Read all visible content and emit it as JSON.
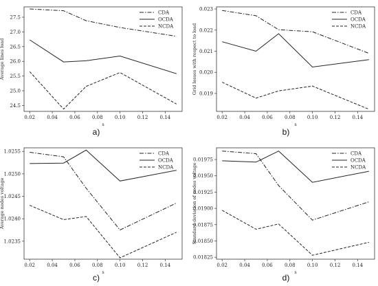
{
  "chart_data": [
    {
      "type": "line",
      "panel_label": "a)",
      "xlabel": "s",
      "ylabel": "Average lines load",
      "x": [
        0.02,
        0.05,
        0.07,
        0.1,
        0.15
      ],
      "xticks": [
        "0.02",
        "0.04",
        "0.06",
        "0.08",
        "0.10",
        "0.12",
        "0.14"
      ],
      "yticks": [
        "24.5",
        "25.0",
        "25.5",
        "26.0",
        "26.5",
        "27.0",
        "27.5"
      ],
      "xlim": [
        0.015,
        0.155
      ],
      "ylim": [
        24.3,
        27.85
      ],
      "legend_position": "top-right",
      "series": [
        {
          "name": "CDA",
          "dash": "dashdot",
          "values": [
            27.78,
            27.72,
            27.38,
            27.15,
            26.85
          ]
        },
        {
          "name": "OCDA",
          "dash": "solid",
          "values": [
            26.73,
            25.98,
            26.02,
            26.18,
            25.58
          ]
        },
        {
          "name": "NCDA",
          "dash": "dashed",
          "values": [
            25.65,
            24.38,
            25.15,
            25.62,
            24.55
          ]
        }
      ]
    },
    {
      "type": "line",
      "panel_label": "b)",
      "xlabel": "s",
      "ylabel": "Grid losses with respect to load",
      "x": [
        0.02,
        0.05,
        0.07,
        0.1,
        0.15
      ],
      "xticks": [
        "0.02",
        "0.04",
        "0.06",
        "0.08",
        "0.10",
        "0.12",
        "0.14"
      ],
      "yticks": [
        "0.019",
        "0.020",
        "0.021",
        "0.022",
        "0.023"
      ],
      "xlim": [
        0.015,
        0.155
      ],
      "ylim": [
        0.01815,
        0.0231
      ],
      "legend_position": "top-right",
      "series": [
        {
          "name": "CDA",
          "dash": "dashdot",
          "values": [
            0.02293,
            0.02268,
            0.02202,
            0.02192,
            0.0209
          ]
        },
        {
          "name": "OCDA",
          "dash": "solid",
          "values": [
            0.02145,
            0.021,
            0.02183,
            0.02025,
            0.0206
          ]
        },
        {
          "name": "NCDA",
          "dash": "dashed",
          "values": [
            0.01953,
            0.01878,
            0.01912,
            0.01935,
            0.01825
          ]
        }
      ]
    },
    {
      "type": "line",
      "panel_label": "c)",
      "xlabel": "s",
      "ylabel": "Average nodes voltage",
      "x": [
        0.02,
        0.05,
        0.07,
        0.1,
        0.15
      ],
      "xticks": [
        "0.02",
        "0.04",
        "0.06",
        "0.08",
        "0.10",
        "0.12",
        "0.14"
      ],
      "yticks": [
        "1.0235",
        "1.0240",
        "1.0245",
        "1.0250",
        "1.0255"
      ],
      "xlim": [
        0.015,
        0.155
      ],
      "ylim": [
        1.0231,
        1.02558
      ],
      "legend_position": "top-right",
      "series": [
        {
          "name": "CDA",
          "dash": "dashdot",
          "values": [
            1.02548,
            1.02538,
            1.02468,
            1.02375,
            1.02435
          ]
        },
        {
          "name": "OCDA",
          "dash": "solid",
          "values": [
            1.02523,
            1.02524,
            1.02553,
            1.02484,
            1.02508
          ]
        },
        {
          "name": "NCDA",
          "dash": "dashed",
          "values": [
            1.0243,
            1.02398,
            1.02405,
            1.02313,
            1.0237
          ]
        }
      ]
    },
    {
      "type": "line",
      "panel_label": "d)",
      "xlabel": "s",
      "ylabel": "Standard deviation of nodes voltage",
      "x": [
        0.02,
        0.05,
        0.07,
        0.1,
        0.15
      ],
      "xticks": [
        "0.02",
        "0.04",
        "0.06",
        "0.08",
        "0.10",
        "0.12",
        "0.14"
      ],
      "yticks": [
        "0.01825",
        "0.01850",
        "0.01875",
        "0.01900",
        "0.01925",
        "0.01950",
        "0.01975"
      ],
      "xlim": [
        0.015,
        0.155
      ],
      "ylim": [
        0.01822,
        0.01993
      ],
      "legend_position": "top-right",
      "series": [
        {
          "name": "CDA",
          "dash": "dashdot",
          "values": [
            0.01988,
            0.01984,
            0.01935,
            0.01882,
            0.0191
          ]
        },
        {
          "name": "OCDA",
          "dash": "solid",
          "values": [
            0.01973,
            0.01971,
            0.01988,
            0.0194,
            0.01957
          ]
        },
        {
          "name": "NCDA",
          "dash": "dashed",
          "values": [
            0.01897,
            0.01868,
            0.01876,
            0.01828,
            0.01848
          ]
        }
      ]
    }
  ]
}
